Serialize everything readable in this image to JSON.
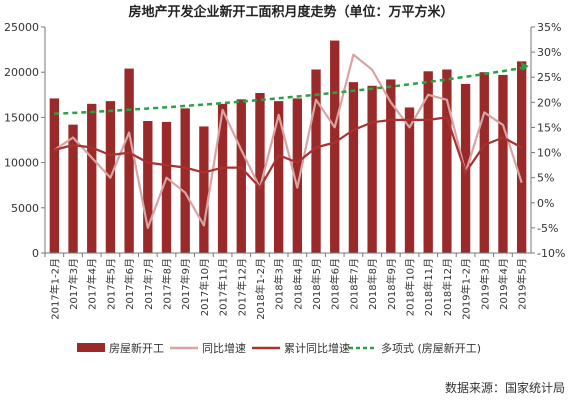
{
  "chart_data": {
    "type": "bar",
    "title": "房地产开发企业新开工面积月度走势（单位：万平方米）",
    "source": "数据来源：国家统计局",
    "categories": [
      "2017年1-2月",
      "2017年3月",
      "2017年4月",
      "2017年5月",
      "2017年6月",
      "2017年7月",
      "2017年8月",
      "2017年9月",
      "2017年10月",
      "2017年11月",
      "2017年12月",
      "2018年1-2月",
      "2018年3月",
      "2018年4月",
      "2018年5月",
      "2018年6月",
      "2018年7月",
      "2018年8月",
      "2018年9月",
      "2018年10月",
      "2018年11月",
      "2018年12月",
      "2019年1-2月",
      "2019年3月",
      "2019年4月",
      "2019年5月"
    ],
    "y_left": {
      "min": 0,
      "max": 25000,
      "ticks": [
        0,
        5000,
        10000,
        15000,
        20000,
        25000
      ],
      "tick_labels": [
        "0",
        "5000",
        "10000",
        "15000",
        "20000",
        "25000"
      ]
    },
    "y_right": {
      "min": -10,
      "max": 35,
      "ticks": [
        -10,
        -5,
        0,
        5,
        10,
        15,
        20,
        25,
        30,
        35
      ],
      "tick_labels": [
        "-10%",
        "-5%",
        "0%",
        "5%",
        "10%",
        "15%",
        "20%",
        "25%",
        "30%",
        "35%"
      ]
    },
    "legend_position": "bottom",
    "series": [
      {
        "name": "房屋新开工",
        "kind": "bar",
        "axis": "left",
        "color": "#9a2a2a",
        "values": [
          17100,
          14200,
          16500,
          16800,
          20400,
          14600,
          14500,
          16000,
          14000,
          16500,
          17000,
          17700,
          16800,
          17100,
          20300,
          23500,
          18900,
          18500,
          19200,
          16100,
          20100,
          20300,
          18700,
          20000,
          19700,
          21200
        ]
      },
      {
        "name": "同比增速",
        "kind": "line",
        "axis": "right",
        "color": "#d9a3a3",
        "values": [
          10.5,
          13,
          9,
          5,
          14,
          -5,
          5,
          2,
          -4.5,
          18.5,
          10.5,
          3,
          17.5,
          3,
          20.5,
          15,
          29.5,
          26.5,
          20,
          15,
          21.5,
          20.5,
          6,
          18,
          15.5,
          4
        ]
      },
      {
        "name": "累计同比增速",
        "kind": "line",
        "axis": "right",
        "color": "#a83232",
        "values": [
          10.5,
          11.5,
          11,
          9.5,
          10,
          8,
          7.5,
          7,
          6,
          7,
          7,
          3,
          9.5,
          8,
          11,
          12,
          14.5,
          16,
          16.5,
          16.5,
          16.5,
          17,
          6,
          11.5,
          13,
          11
        ]
      },
      {
        "name": "多项式 (房屋新开工)",
        "kind": "trend",
        "axis": "left",
        "color": "#27a345",
        "values": [
          15400,
          15500,
          15600,
          15720,
          15850,
          15980,
          16120,
          16270,
          16420,
          16580,
          16750,
          16930,
          17120,
          17310,
          17510,
          17720,
          17940,
          18170,
          18410,
          18660,
          18920,
          19200,
          19490,
          19800,
          20120,
          20460
        ]
      }
    ]
  }
}
